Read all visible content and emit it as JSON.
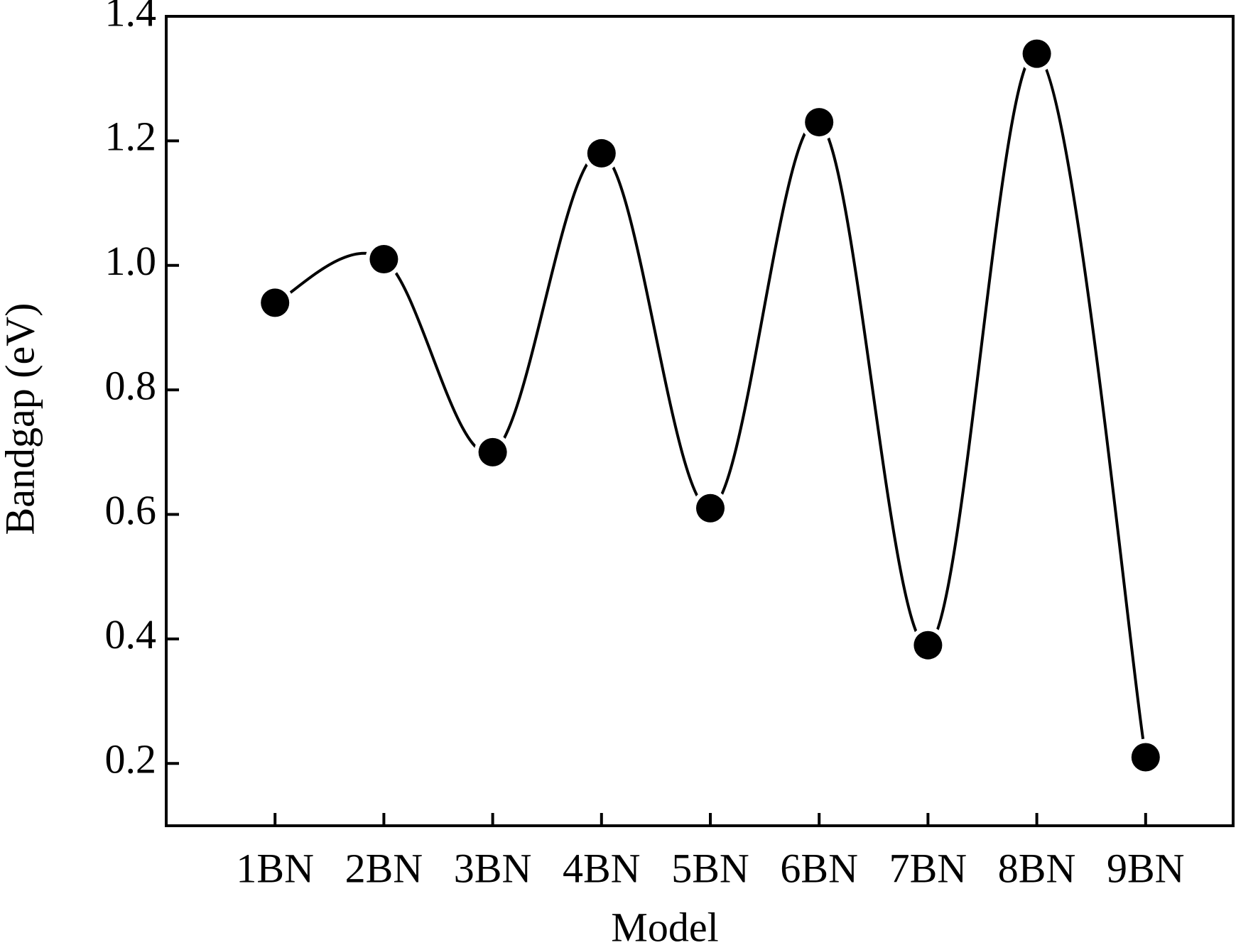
{
  "chart_data": {
    "type": "line",
    "x_label": "Model",
    "y_label": "Bandgap (eV)",
    "categories": [
      "1BN",
      "2BN",
      "3BN",
      "4BN",
      "5BN",
      "6BN",
      "7BN",
      "8BN",
      "9BN"
    ],
    "values": [
      0.94,
      1.01,
      0.7,
      1.18,
      0.61,
      1.23,
      0.39,
      1.34,
      0.21
    ],
    "color": "#000000",
    "ylim": [
      0.1,
      1.4
    ],
    "yticks": [
      0.2,
      0.4,
      0.6,
      0.8,
      {
        "value": 1,
        "label": "1.0"
      },
      1.2,
      1.4
    ],
    "smooth": true
  }
}
